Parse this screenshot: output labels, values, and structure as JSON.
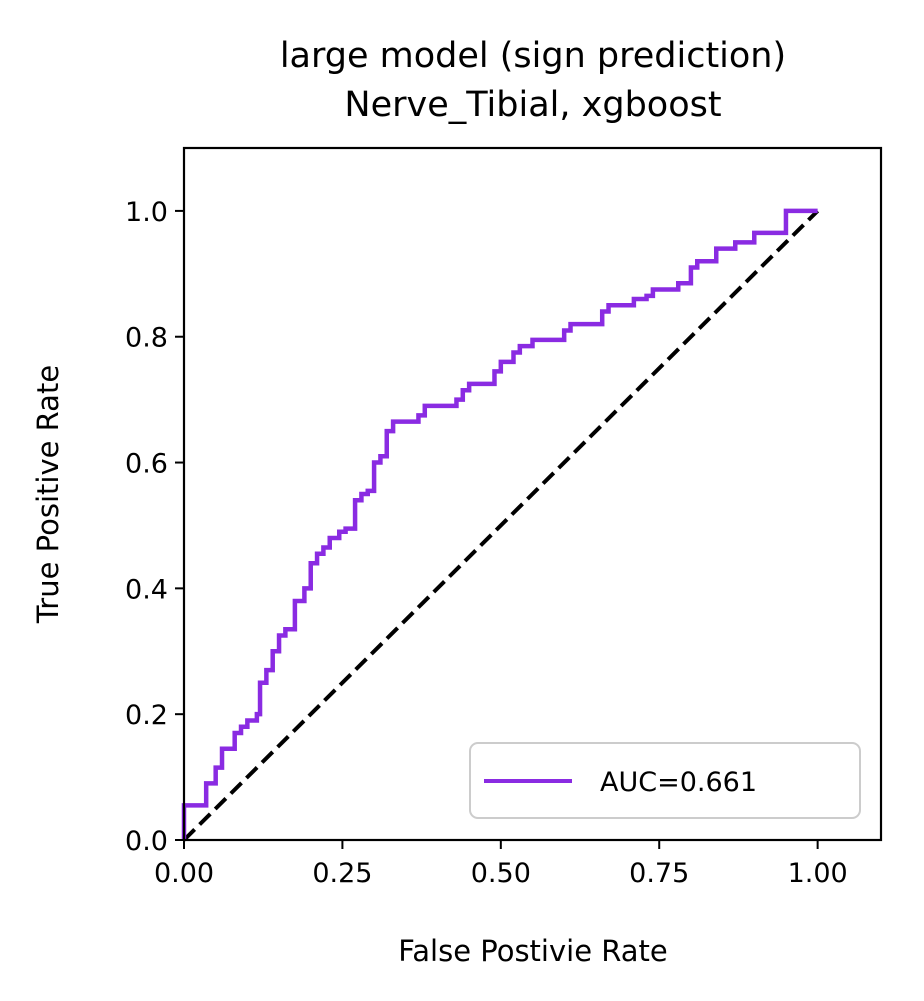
{
  "chart_data": {
    "type": "line",
    "title_line1": "large model (sign prediction)",
    "title_line2": "Nerve_Tibial, xgboost",
    "xlabel": "False Postivie Rate",
    "ylabel": "True Positive Rate",
    "xlim": [
      0.0,
      1.1
    ],
    "ylim": [
      0.0,
      1.1
    ],
    "xticks": [
      0.0,
      0.25,
      0.5,
      0.75,
      1.0
    ],
    "xtick_labels": [
      "0.00",
      "0.25",
      "0.50",
      "0.75",
      "1.00"
    ],
    "yticks": [
      0.0,
      0.2,
      0.4,
      0.6,
      0.8,
      1.0
    ],
    "ytick_labels": [
      "0.0",
      "0.2",
      "0.4",
      "0.6",
      "0.8",
      "1.0"
    ],
    "grid": false,
    "legend_placement": "lower-right",
    "series": [
      {
        "name": "AUC=0.661",
        "color": "#8a2be2",
        "style": "step",
        "points": [
          [
            0.0,
            0.0
          ],
          [
            0.0,
            0.055
          ],
          [
            0.035,
            0.055
          ],
          [
            0.035,
            0.09
          ],
          [
            0.05,
            0.09
          ],
          [
            0.05,
            0.115
          ],
          [
            0.06,
            0.115
          ],
          [
            0.06,
            0.145
          ],
          [
            0.08,
            0.145
          ],
          [
            0.08,
            0.17
          ],
          [
            0.09,
            0.17
          ],
          [
            0.09,
            0.18
          ],
          [
            0.1,
            0.18
          ],
          [
            0.1,
            0.19
          ],
          [
            0.115,
            0.19
          ],
          [
            0.115,
            0.2
          ],
          [
            0.12,
            0.2
          ],
          [
            0.12,
            0.25
          ],
          [
            0.13,
            0.25
          ],
          [
            0.13,
            0.27
          ],
          [
            0.14,
            0.27
          ],
          [
            0.14,
            0.3
          ],
          [
            0.15,
            0.3
          ],
          [
            0.15,
            0.325
          ],
          [
            0.16,
            0.325
          ],
          [
            0.16,
            0.335
          ],
          [
            0.175,
            0.335
          ],
          [
            0.175,
            0.38
          ],
          [
            0.19,
            0.38
          ],
          [
            0.19,
            0.4
          ],
          [
            0.2,
            0.4
          ],
          [
            0.2,
            0.44
          ],
          [
            0.21,
            0.44
          ],
          [
            0.21,
            0.455
          ],
          [
            0.22,
            0.455
          ],
          [
            0.22,
            0.465
          ],
          [
            0.23,
            0.465
          ],
          [
            0.23,
            0.48
          ],
          [
            0.245,
            0.48
          ],
          [
            0.245,
            0.49
          ],
          [
            0.255,
            0.49
          ],
          [
            0.255,
            0.495
          ],
          [
            0.27,
            0.495
          ],
          [
            0.27,
            0.54
          ],
          [
            0.28,
            0.54
          ],
          [
            0.28,
            0.55
          ],
          [
            0.29,
            0.55
          ],
          [
            0.29,
            0.555
          ],
          [
            0.3,
            0.555
          ],
          [
            0.3,
            0.6
          ],
          [
            0.31,
            0.6
          ],
          [
            0.31,
            0.61
          ],
          [
            0.32,
            0.61
          ],
          [
            0.32,
            0.65
          ],
          [
            0.33,
            0.65
          ],
          [
            0.33,
            0.665
          ],
          [
            0.37,
            0.665
          ],
          [
            0.37,
            0.675
          ],
          [
            0.38,
            0.675
          ],
          [
            0.38,
            0.69
          ],
          [
            0.43,
            0.69
          ],
          [
            0.43,
            0.7
          ],
          [
            0.44,
            0.7
          ],
          [
            0.44,
            0.715
          ],
          [
            0.45,
            0.715
          ],
          [
            0.45,
            0.725
          ],
          [
            0.49,
            0.725
          ],
          [
            0.49,
            0.745
          ],
          [
            0.5,
            0.745
          ],
          [
            0.5,
            0.76
          ],
          [
            0.52,
            0.76
          ],
          [
            0.52,
            0.775
          ],
          [
            0.53,
            0.775
          ],
          [
            0.53,
            0.785
          ],
          [
            0.55,
            0.785
          ],
          [
            0.55,
            0.795
          ],
          [
            0.6,
            0.795
          ],
          [
            0.6,
            0.81
          ],
          [
            0.61,
            0.81
          ],
          [
            0.61,
            0.82
          ],
          [
            0.66,
            0.82
          ],
          [
            0.66,
            0.84
          ],
          [
            0.67,
            0.84
          ],
          [
            0.67,
            0.85
          ],
          [
            0.71,
            0.85
          ],
          [
            0.71,
            0.86
          ],
          [
            0.73,
            0.86
          ],
          [
            0.73,
            0.865
          ],
          [
            0.74,
            0.865
          ],
          [
            0.74,
            0.875
          ],
          [
            0.78,
            0.875
          ],
          [
            0.78,
            0.885
          ],
          [
            0.8,
            0.885
          ],
          [
            0.8,
            0.91
          ],
          [
            0.81,
            0.91
          ],
          [
            0.81,
            0.92
          ],
          [
            0.84,
            0.92
          ],
          [
            0.84,
            0.94
          ],
          [
            0.87,
            0.94
          ],
          [
            0.87,
            0.95
          ],
          [
            0.9,
            0.95
          ],
          [
            0.9,
            0.965
          ],
          [
            0.95,
            0.965
          ],
          [
            0.95,
            1.0
          ],
          [
            1.0,
            1.0
          ]
        ]
      },
      {
        "name": "",
        "color": "#000000",
        "style": "dashed",
        "points": [
          [
            0.0,
            0.0
          ],
          [
            1.0,
            1.0
          ]
        ]
      }
    ]
  }
}
